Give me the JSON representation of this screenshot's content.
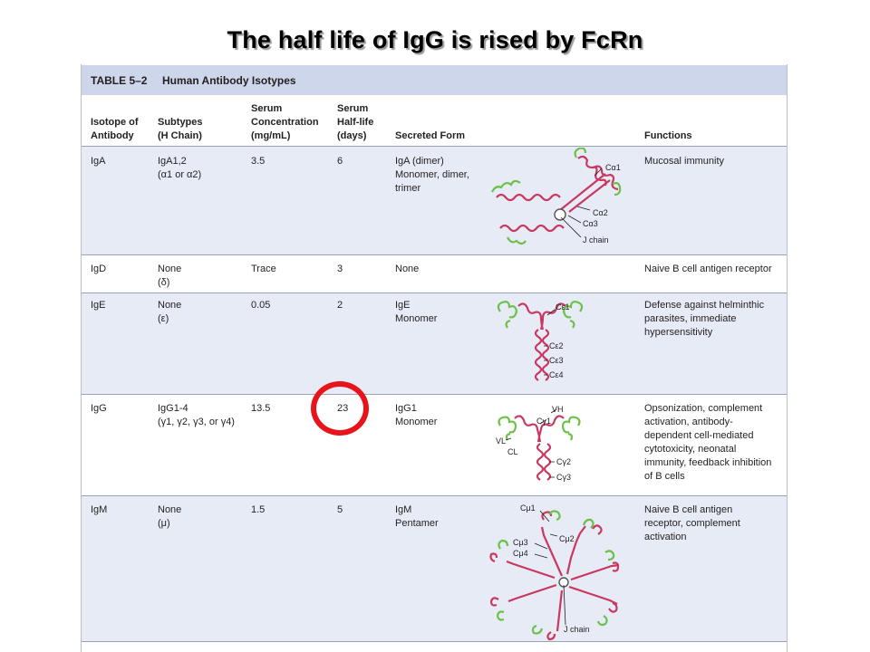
{
  "slide": {
    "title": "The half life of IgG is rised by FcRn"
  },
  "table": {
    "caption_number": "TABLE 5–2",
    "caption_title": "Human Antibody Isotypes",
    "headers": {
      "isotype": "Isotope of\nAntibody",
      "subtypes": "Subtypes\n(H Chain)",
      "serum_conc": "Serum\nConcentration\n(mg/mL)",
      "half_life": "Serum\nHalf-life\n(days)",
      "secreted": "Secreted Form",
      "functions": "Functions"
    },
    "rows": [
      {
        "isotype": "IgA",
        "subtypes": "IgA1,2\n(α1 or α2)",
        "serum_conc": "3.5",
        "half_life": "6",
        "secreted": "IgA (dimer)\nMonomer, dimer,\ntrimer",
        "functions": "Mucosal immunity",
        "diagram_labels": [
          "Cα1",
          "Cα2",
          "Cα3",
          "J chain"
        ]
      },
      {
        "isotype": "IgD",
        "subtypes": "None\n(δ)",
        "serum_conc": "Trace",
        "half_life": "3",
        "secreted": "None",
        "functions": "Naive B cell antigen receptor",
        "diagram_labels": []
      },
      {
        "isotype": "IgE",
        "subtypes": "None\n(ε)",
        "serum_conc": "0.05",
        "half_life": "2",
        "secreted": "IgE\nMonomer",
        "functions": "Defense against helminthic\nparasites, immediate\nhypersensitivity",
        "diagram_labels": [
          "Cε1",
          "Cε2",
          "Cε3",
          "Cε4"
        ]
      },
      {
        "isotype": "IgG",
        "subtypes": "IgG1-4\n(γ1, γ2, γ3, or γ4)",
        "serum_conc": "13.5",
        "half_life": "23",
        "secreted": "IgG1\nMonomer",
        "functions": "Opsonization, complement\nactivation, antibody-\ndependent cell-mediated\ncytotoxicity, neonatal\nimmunity, feedback inhibition\nof B cells",
        "diagram_labels": [
          "VH",
          "Cγ1",
          "VL",
          "CL",
          "Cγ2",
          "Cγ3"
        ]
      },
      {
        "isotype": "IgM",
        "subtypes": "None\n(μ)",
        "serum_conc": "1.5",
        "half_life": "5",
        "secreted": "IgM\nPentamer",
        "functions": "Naive B cell antigen\nreceptor, complement\nactivation",
        "diagram_labels": [
          "Cμ1",
          "Cμ2",
          "Cμ3",
          "Cμ4",
          "J chain"
        ]
      }
    ],
    "highlighted_cell": "IgG half-life"
  },
  "colors": {
    "caption_band": "#cdd6ea",
    "row_band": "#e6ebf6",
    "heavy_chain": "#c8385f",
    "light_chain": "#6cc04a",
    "highlight": "#e8141b"
  }
}
